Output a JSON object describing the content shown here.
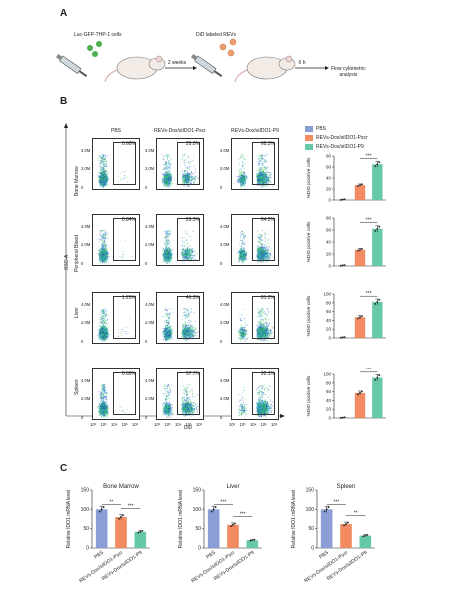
{
  "panel_a": {
    "letter": "A",
    "label_cells": "Luc-GFP-THP-1 cells",
    "label_revs": "DiD labeled REVs",
    "label_2weeks": "2 weeks",
    "label_6h": "6 h",
    "label_flow": "Flow cytometric\nanalysis"
  },
  "panel_b": {
    "letter": "B",
    "columns": [
      "PBS",
      "REVs-Dox/siIDO1-Pscr",
      "REVs-Dox/siIDO1-P9"
    ],
    "rows": [
      "Bone Marrow",
      "Peripheral Blood",
      "Liver",
      "Spleen"
    ],
    "percentages": [
      [
        "0.68%",
        "29.0%",
        "68.3%"
      ],
      [
        "0.84%",
        "29.3%",
        "64.2%"
      ],
      [
        "1.25%",
        "46.3%",
        "81.2%"
      ],
      [
        "0.69%",
        "57.7%",
        "92.1%"
      ]
    ],
    "y_axis_label": "SSC-A",
    "x_axis_label": "DiD",
    "y_ticks": [
      "4.0M",
      "2.0M",
      "0"
    ],
    "x_ticks": [
      "10²",
      "10³",
      "10⁴",
      "10⁵",
      "10⁶"
    ],
    "legend": [
      "PBS",
      "REVs-Dox/siIDO1-Pscr",
      "REVs-Dox/siIDO1-P9"
    ],
    "bar_ylabel": "%DiD positive cells",
    "sig": "***"
  },
  "panel_c": {
    "letter": "C",
    "ylabel": "Relative IDO1 mRNA level",
    "categories": [
      "PBS",
      "REVs-Dox/siIDO1-Pscr",
      "REVs-Dox/siIDO1-P9"
    ]
  },
  "colors": {
    "pbs": "#8b9fd6",
    "pscr": "#f28b62",
    "p9": "#66c9a6"
  },
  "chart_data": [
    {
      "type": "bar",
      "title": "",
      "ylabel": "%DiD positive cells",
      "ylim": [
        0,
        80
      ],
      "yticks": [
        0,
        20,
        40,
        60,
        80
      ],
      "categories": [
        "PBS",
        "REVs-Dox/siIDO1-Pscr",
        "REVs-Dox/siIDO1-P9"
      ],
      "values": [
        0.7,
        27,
        65
      ],
      "sig": [
        "***"
      ]
    },
    {
      "type": "bar",
      "title": "",
      "ylabel": "%DiD positive cells",
      "ylim": [
        0,
        80
      ],
      "yticks": [
        0,
        20,
        40,
        60,
        80
      ],
      "categories": [
        "PBS",
        "REVs-Dox/siIDO1-Pscr",
        "REVs-Dox/siIDO1-P9"
      ],
      "values": [
        0.8,
        27,
        62
      ],
      "sig": [
        "***"
      ]
    },
    {
      "type": "bar",
      "title": "",
      "ylabel": "%DiD positive cells",
      "ylim": [
        0,
        100
      ],
      "yticks": [
        0,
        20,
        40,
        60,
        80,
        100
      ],
      "categories": [
        "PBS",
        "REVs-Dox/siIDO1-Pscr",
        "REVs-Dox/siIDO1-P9"
      ],
      "values": [
        1.2,
        47,
        82
      ],
      "sig": [
        "***"
      ]
    },
    {
      "type": "bar",
      "title": "",
      "ylabel": "%DiD positive cells",
      "ylim": [
        0,
        100
      ],
      "yticks": [
        0,
        20,
        40,
        60,
        80,
        100
      ],
      "categories": [
        "PBS",
        "REVs-Dox/siIDO1-Pscr",
        "REVs-Dox/siIDO1-P9"
      ],
      "values": [
        0.7,
        57,
        92
      ],
      "sig": [
        "***"
      ]
    },
    {
      "type": "bar",
      "title": "Bone Marrow",
      "ylabel": "Relative IDO1 mRNA level",
      "ylim": [
        0,
        150
      ],
      "yticks": [
        0,
        50,
        100,
        150
      ],
      "categories": [
        "PBS",
        "REVs-Dox/siIDO1-Pscr",
        "REVs-Dox/siIDO1-P9"
      ],
      "values": [
        100,
        80,
        42
      ],
      "sig": [
        "**",
        "***"
      ]
    },
    {
      "type": "bar",
      "title": "Liver",
      "ylabel": "Relative IDO1 mRNA level",
      "ylim": [
        0,
        150
      ],
      "yticks": [
        0,
        50,
        100,
        150
      ],
      "categories": [
        "PBS",
        "REVs-Dox/siIDO1-Pscr",
        "REVs-Dox/siIDO1-P9"
      ],
      "values": [
        100,
        60,
        20
      ],
      "sig": [
        "***",
        "***"
      ]
    },
    {
      "type": "bar",
      "title": "Spleen",
      "ylabel": "Relative IDO1 mRNA level",
      "ylim": [
        0,
        150
      ],
      "yticks": [
        0,
        50,
        100,
        150
      ],
      "categories": [
        "PBS",
        "REVs-Dox/siIDO1-Pscr",
        "REVs-Dox/siIDO1-P9"
      ],
      "values": [
        100,
        62,
        32
      ],
      "sig": [
        "***",
        "**"
      ]
    }
  ]
}
